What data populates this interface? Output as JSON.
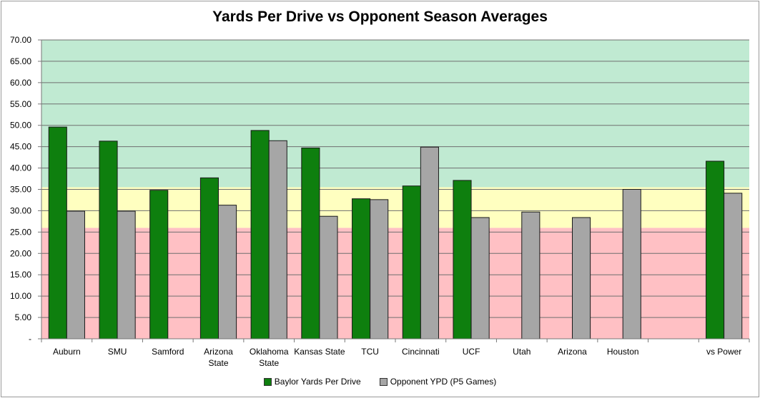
{
  "chart_data": {
    "type": "bar",
    "title": "Yards Per Drive vs Opponent Season Averages",
    "xlabel": "",
    "ylabel": "",
    "ylim": [
      0,
      70
    ],
    "ytick_step": 5,
    "ytick_labels": [
      "-",
      "5.00",
      "10.00",
      "15.00",
      "20.00",
      "25.00",
      "30.00",
      "35.00",
      "40.00",
      "45.00",
      "50.00",
      "55.00",
      "60.00",
      "65.00",
      "70.00"
    ],
    "grid": true,
    "legend_position": "bottom",
    "bands": [
      {
        "from": 0,
        "to": 26,
        "color": "#ffc0c4"
      },
      {
        "from": 26,
        "to": 35.5,
        "color": "#ffffc0"
      },
      {
        "from": 35.5,
        "to": 70,
        "color": "#c0ead2"
      }
    ],
    "categories": [
      "Auburn",
      "SMU",
      "Samford",
      "Arizona State",
      "Oklahoma State",
      "Kansas State",
      "TCU",
      "Cincinnati",
      "UCF",
      "Utah",
      "Arizona",
      "Houston",
      "",
      "vs Power"
    ],
    "category_label_lines": [
      [
        "Auburn"
      ],
      [
        "SMU"
      ],
      [
        "Samford"
      ],
      [
        "Arizona",
        "State"
      ],
      [
        "Oklahoma",
        "State"
      ],
      [
        "Kansas State"
      ],
      [
        "TCU"
      ],
      [
        "Cincinnati"
      ],
      [
        "UCF"
      ],
      [
        "Utah"
      ],
      [
        "Arizona"
      ],
      [
        "Houston"
      ],
      [
        ""
      ],
      [
        "vs Power"
      ]
    ],
    "series": [
      {
        "name": "Baylor Yards Per Drive",
        "color": "#0e7f0e",
        "values": [
          49.6,
          46.3,
          34.8,
          37.7,
          48.8,
          44.7,
          32.8,
          35.8,
          37.1,
          null,
          null,
          null,
          null,
          41.6
        ]
      },
      {
        "name": "Opponent YPD (P5 Games)",
        "color": "#a6a6a6",
        "values": [
          29.9,
          29.9,
          null,
          31.3,
          46.4,
          28.7,
          32.6,
          44.9,
          28.4,
          29.7,
          28.4,
          35.0,
          null,
          34.1
        ]
      }
    ]
  }
}
